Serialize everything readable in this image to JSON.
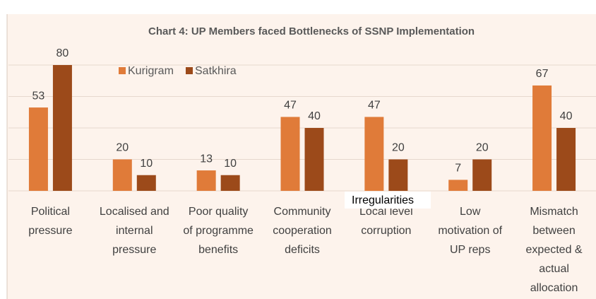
{
  "chart_data": {
    "type": "bar",
    "title": "Chart 4: UP Members faced Bottlenecks of SSNP Implementation",
    "categories": [
      "Political pressure",
      "Localised and internal pressure",
      "Poor quality of programme benefits",
      "Community cooperation deficits",
      "Local level corruption",
      "Low motivation of UP reps",
      "Mismatch between expected & actual allocation"
    ],
    "series": [
      {
        "name": "Kurigram",
        "color": "#e07b39",
        "values": [
          53,
          20,
          13,
          47,
          47,
          7,
          67
        ]
      },
      {
        "name": "Satkhira",
        "color": "#9c4a1a",
        "values": [
          80,
          10,
          10,
          40,
          20,
          20,
          40
        ]
      }
    ],
    "ylim": [
      0,
      80
    ],
    "yticks": [
      0,
      20,
      40,
      60,
      80
    ],
    "grid": true,
    "annotation": "Irregularities"
  }
}
